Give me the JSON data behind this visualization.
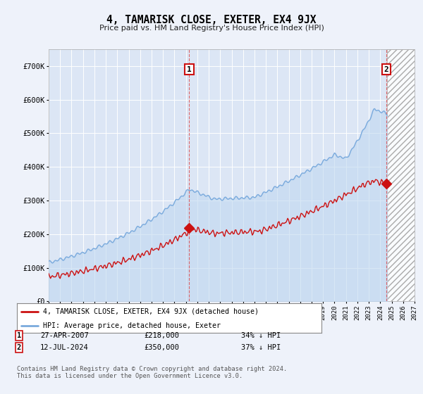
{
  "title": "4, TAMARISK CLOSE, EXETER, EX4 9JX",
  "subtitle": "Price paid vs. HM Land Registry's House Price Index (HPI)",
  "background_color": "#eef2fa",
  "plot_bg_color": "#dce6f5",
  "grid_color": "#ffffff",
  "ylim": [
    0,
    750000
  ],
  "yticks": [
    0,
    100000,
    200000,
    300000,
    400000,
    500000,
    600000,
    700000
  ],
  "ytick_labels": [
    "£0",
    "£100K",
    "£200K",
    "£300K",
    "£400K",
    "£500K",
    "£600K",
    "£700K"
  ],
  "hpi_color": "#7aaadd",
  "hpi_fill_color": "#c0d8f0",
  "price_color": "#cc1111",
  "marker1_year": 2007.3,
  "marker1_price": 218000,
  "marker1_label": "27-APR-2007",
  "marker1_value": "£218,000",
  "marker1_pct": "34% ↓ HPI",
  "marker2_year": 2024.54,
  "marker2_price": 350000,
  "marker2_label": "12-JUL-2024",
  "marker2_value": "£350,000",
  "marker2_pct": "37% ↓ HPI",
  "legend_line1": "4, TAMARISK CLOSE, EXETER, EX4 9JX (detached house)",
  "legend_line2": "HPI: Average price, detached house, Exeter",
  "footnote": "Contains HM Land Registry data © Crown copyright and database right 2024.\nThis data is licensed under the Open Government Licence v3.0.",
  "xmin": 1995,
  "xmax": 2027,
  "hatch_start": 2024.6
}
